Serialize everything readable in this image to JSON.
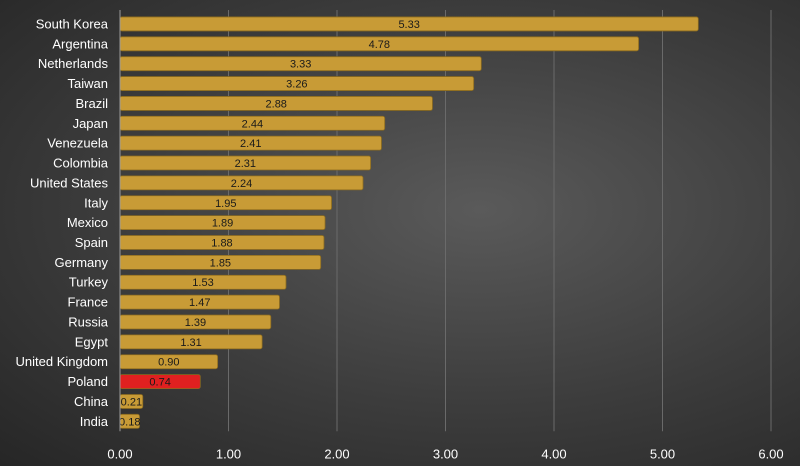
{
  "chart_data": {
    "type": "bar",
    "orientation": "horizontal",
    "categories": [
      "South Korea",
      "Argentina",
      "Netherlands",
      "Taiwan",
      "Brazil",
      "Japan",
      "Venezuela",
      "Colombia",
      "United States",
      "Italy",
      "Mexico",
      "Spain",
      "Germany",
      "Turkey",
      "France",
      "Russia",
      "Egypt",
      "United Kingdom",
      "Poland",
      "China",
      "India"
    ],
    "values": [
      5.33,
      4.78,
      3.33,
      3.26,
      2.88,
      2.44,
      2.41,
      2.31,
      2.24,
      1.95,
      1.89,
      1.88,
      1.85,
      1.53,
      1.47,
      1.39,
      1.31,
      0.9,
      0.74,
      0.21,
      0.18
    ],
    "value_labels": [
      "5.33",
      "4.78",
      "3.33",
      "3.26",
      "2.88",
      "2.44",
      "2.41",
      "2.31",
      "2.24",
      "1.95",
      "1.89",
      "1.88",
      "1.85",
      "1.53",
      "1.47",
      "1.39",
      "1.31",
      "0.90",
      "0.74",
      "0.21",
      "0.18"
    ],
    "x_ticks": [
      "0.00",
      "1.00",
      "2.00",
      "3.00",
      "4.00",
      "5.00",
      "6.00"
    ],
    "xlim": [
      0,
      6
    ],
    "grid": true,
    "title": "",
    "xlabel": "",
    "ylabel": "",
    "colors": {
      "bar": "#c89b36",
      "highlight": "#e02020",
      "highlight_category": "Poland"
    }
  }
}
